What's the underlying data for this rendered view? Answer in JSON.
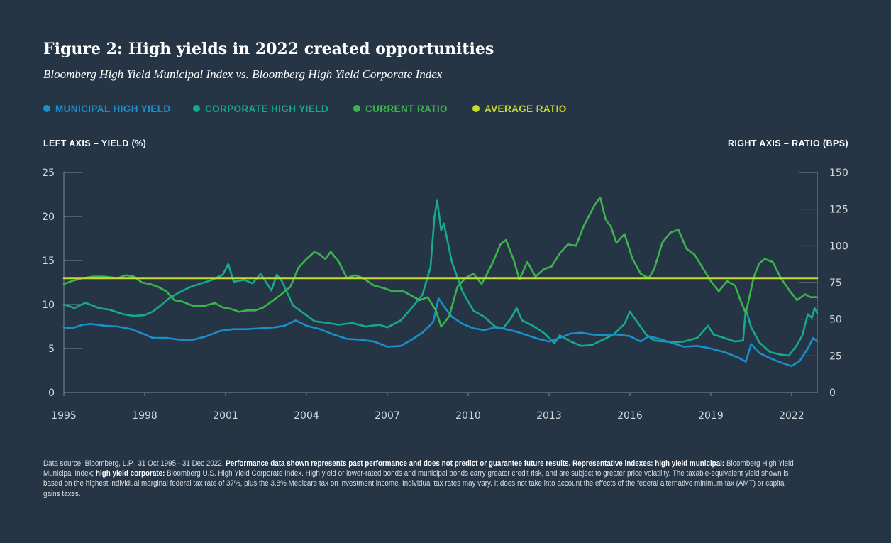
{
  "title": "Figure 2: High yields in 2022 created opportunities",
  "subtitle": "Bloomberg High Yield Municipal Index vs. Bloomberg High Yield Corporate Index",
  "legend": [
    {
      "label": "MUNICIPAL HIGH YIELD",
      "color": "#1a8fc9"
    },
    {
      "label": "CORPORATE HIGH YIELD",
      "color": "#17a98c"
    },
    {
      "label": "CURRENT RATIO",
      "color": "#3ab54a"
    },
    {
      "label": "AVERAGE RATIO",
      "color": "#c9da2a"
    }
  ],
  "left_axis_label": "LEFT AXIS – YIELD (%)",
  "right_axis_label": "RIGHT AXIS – RATIO (BPS)",
  "footnote": {
    "p1": "Data source: Bloomberg, L.P., 31 Oct 1995 - 31 Dec 2022. ",
    "b1": "Performance data shown represents past performance and does not predict or guarantee future results. Representative indexes: high yield municipal: ",
    "p2": "Bloomberg High Yield Municipal Index; ",
    "b2": "high yield corporate: ",
    "p3": "Bloomberg U.S. High Yield Corporate Index. High yield or lower-rated bonds and municipal bonds carry greater credit risk, and are subject to greater price volatility. The taxable-equivalent yield shown is based on the highest individual marginal federal tax rate of 37%, plus the 3.8% Medicare tax on investment income. Individual tax rates may vary. It does not take into account the effects of the federal alternative minimum tax (AMT) or capital gains taxes."
  },
  "chart_data": {
    "type": "line",
    "x_range": [
      1995.0,
      2022.95
    ],
    "x_ticks": [
      1995,
      1998,
      2001,
      2004,
      2007,
      2010,
      2013,
      2016,
      2019,
      2022
    ],
    "x_tick_labels": [
      "1995",
      "1998",
      "2001",
      "2004",
      "2007",
      "2010",
      "2013",
      "2016",
      "2019",
      "2022"
    ],
    "left_axis": {
      "label": "Yield (%)",
      "range": [
        0,
        25
      ],
      "ticks": [
        0,
        5,
        10,
        15,
        20,
        25
      ],
      "tick_labels": [
        "0",
        "5",
        "10",
        "15",
        "20",
        "25"
      ]
    },
    "right_axis": {
      "label": "Ratio (bps)",
      "range": [
        0,
        150
      ],
      "ticks": [
        0,
        25,
        50,
        75,
        100,
        125,
        150
      ],
      "tick_labels": [
        "0",
        "25",
        "50",
        "75",
        "100",
        "125",
        "150"
      ]
    },
    "series": [
      {
        "name": "Municipal High Yield",
        "axis": "left",
        "color": "#1a8fc9",
        "points": [
          [
            1995.0,
            7.4
          ],
          [
            1995.3,
            7.3
          ],
          [
            1995.7,
            7.7
          ],
          [
            1996.0,
            7.8
          ],
          [
            1996.5,
            7.6
          ],
          [
            1997.0,
            7.5
          ],
          [
            1997.5,
            7.2
          ],
          [
            1998.0,
            6.6
          ],
          [
            1998.3,
            6.2
          ],
          [
            1998.8,
            6.2
          ],
          [
            1999.3,
            6.0
          ],
          [
            1999.8,
            6.0
          ],
          [
            2000.3,
            6.4
          ],
          [
            2000.8,
            7.0
          ],
          [
            2001.3,
            7.2
          ],
          [
            2001.8,
            7.2
          ],
          [
            2002.3,
            7.3
          ],
          [
            2002.8,
            7.4
          ],
          [
            2003.2,
            7.6
          ],
          [
            2003.6,
            8.2
          ],
          [
            2004.0,
            7.6
          ],
          [
            2004.5,
            7.2
          ],
          [
            2005.0,
            6.6
          ],
          [
            2005.5,
            6.1
          ],
          [
            2006.0,
            6.0
          ],
          [
            2006.5,
            5.8
          ],
          [
            2007.0,
            5.2
          ],
          [
            2007.5,
            5.3
          ],
          [
            2007.9,
            6.0
          ],
          [
            2008.3,
            6.8
          ],
          [
            2008.7,
            8.0
          ],
          [
            2008.9,
            10.7
          ],
          [
            2009.1,
            9.8
          ],
          [
            2009.4,
            8.6
          ],
          [
            2009.8,
            7.8
          ],
          [
            2010.2,
            7.3
          ],
          [
            2010.6,
            7.1
          ],
          [
            2011.0,
            7.4
          ],
          [
            2011.4,
            7.2
          ],
          [
            2011.8,
            6.9
          ],
          [
            2012.2,
            6.5
          ],
          [
            2012.6,
            6.1
          ],
          [
            2013.0,
            5.8
          ],
          [
            2013.4,
            6.2
          ],
          [
            2013.8,
            6.7
          ],
          [
            2014.2,
            6.8
          ],
          [
            2014.6,
            6.6
          ],
          [
            2015.0,
            6.5
          ],
          [
            2015.5,
            6.6
          ],
          [
            2016.0,
            6.4
          ],
          [
            2016.4,
            5.8
          ],
          [
            2016.7,
            6.4
          ],
          [
            2017.1,
            6.1
          ],
          [
            2017.5,
            5.7
          ],
          [
            2018.0,
            5.2
          ],
          [
            2018.5,
            5.3
          ],
          [
            2019.0,
            5.0
          ],
          [
            2019.5,
            4.6
          ],
          [
            2020.0,
            4.0
          ],
          [
            2020.3,
            3.5
          ],
          [
            2020.5,
            5.5
          ],
          [
            2020.8,
            4.5
          ],
          [
            2021.2,
            3.9
          ],
          [
            2021.6,
            3.4
          ],
          [
            2022.0,
            3.0
          ],
          [
            2022.3,
            3.6
          ],
          [
            2022.6,
            5.0
          ],
          [
            2022.8,
            6.2
          ],
          [
            2022.95,
            5.8
          ]
        ]
      },
      {
        "name": "Corporate High Yield",
        "axis": "left",
        "color": "#17a98c",
        "points": [
          [
            1995.0,
            10.0
          ],
          [
            1995.4,
            9.6
          ],
          [
            1995.8,
            10.2
          ],
          [
            1996.3,
            9.6
          ],
          [
            1996.7,
            9.4
          ],
          [
            1997.2,
            8.9
          ],
          [
            1997.6,
            8.7
          ],
          [
            1998.0,
            8.8
          ],
          [
            1998.3,
            9.2
          ],
          [
            1998.6,
            9.9
          ],
          [
            1998.9,
            10.7
          ],
          [
            1999.3,
            11.4
          ],
          [
            1999.7,
            12.0
          ],
          [
            2000.1,
            12.4
          ],
          [
            2000.5,
            12.8
          ],
          [
            2000.9,
            13.4
          ],
          [
            2001.1,
            14.6
          ],
          [
            2001.3,
            12.6
          ],
          [
            2001.7,
            12.8
          ],
          [
            2002.0,
            12.4
          ],
          [
            2002.3,
            13.5
          ],
          [
            2002.7,
            11.6
          ],
          [
            2002.9,
            13.4
          ],
          [
            2003.1,
            12.6
          ],
          [
            2003.5,
            9.9
          ],
          [
            2003.9,
            9.0
          ],
          [
            2004.3,
            8.1
          ],
          [
            2004.8,
            7.9
          ],
          [
            2005.2,
            7.7
          ],
          [
            2005.7,
            7.9
          ],
          [
            2006.2,
            7.5
          ],
          [
            2006.7,
            7.7
          ],
          [
            2007.0,
            7.4
          ],
          [
            2007.5,
            8.2
          ],
          [
            2007.9,
            9.6
          ],
          [
            2008.3,
            11.1
          ],
          [
            2008.6,
            14.2
          ],
          [
            2008.75,
            20.0
          ],
          [
            2008.85,
            21.8
          ],
          [
            2009.0,
            18.4
          ],
          [
            2009.1,
            19.2
          ],
          [
            2009.4,
            14.8
          ],
          [
            2009.8,
            11.4
          ],
          [
            2010.2,
            9.3
          ],
          [
            2010.6,
            8.6
          ],
          [
            2011.0,
            7.5
          ],
          [
            2011.3,
            7.3
          ],
          [
            2011.6,
            8.5
          ],
          [
            2011.8,
            9.6
          ],
          [
            2012.0,
            8.2
          ],
          [
            2012.4,
            7.6
          ],
          [
            2012.8,
            6.8
          ],
          [
            2013.2,
            5.6
          ],
          [
            2013.4,
            6.5
          ],
          [
            2013.8,
            5.8
          ],
          [
            2014.2,
            5.3
          ],
          [
            2014.6,
            5.4
          ],
          [
            2015.0,
            6.0
          ],
          [
            2015.4,
            6.6
          ],
          [
            2015.8,
            7.8
          ],
          [
            2016.0,
            9.2
          ],
          [
            2016.3,
            7.9
          ],
          [
            2016.6,
            6.6
          ],
          [
            2016.9,
            5.9
          ],
          [
            2017.3,
            5.8
          ],
          [
            2017.7,
            5.7
          ],
          [
            2018.0,
            5.8
          ],
          [
            2018.5,
            6.2
          ],
          [
            2018.9,
            7.6
          ],
          [
            2019.1,
            6.6
          ],
          [
            2019.5,
            6.2
          ],
          [
            2019.9,
            5.8
          ],
          [
            2020.2,
            5.9
          ],
          [
            2020.3,
            9.5
          ],
          [
            2020.5,
            7.4
          ],
          [
            2020.8,
            5.7
          ],
          [
            2021.2,
            4.6
          ],
          [
            2021.6,
            4.3
          ],
          [
            2021.9,
            4.2
          ],
          [
            2022.2,
            5.4
          ],
          [
            2022.4,
            6.5
          ],
          [
            2022.6,
            8.9
          ],
          [
            2022.75,
            8.5
          ],
          [
            2022.85,
            9.6
          ],
          [
            2022.95,
            9.0
          ]
        ]
      },
      {
        "name": "Current Ratio",
        "axis": "right",
        "color": "#3ab54a",
        "points": [
          [
            1995.0,
            74
          ],
          [
            1995.3,
            76
          ],
          [
            1995.7,
            78
          ],
          [
            1996.1,
            79
          ],
          [
            1996.5,
            79
          ],
          [
            1997.0,
            78
          ],
          [
            1997.3,
            80
          ],
          [
            1997.6,
            79
          ],
          [
            1997.9,
            75
          ],
          [
            1998.2,
            74
          ],
          [
            1998.5,
            72
          ],
          [
            1998.8,
            69
          ],
          [
            1999.1,
            63
          ],
          [
            1999.4,
            62
          ],
          [
            1999.8,
            59
          ],
          [
            2000.2,
            59
          ],
          [
            2000.6,
            61
          ],
          [
            2000.9,
            58
          ],
          [
            2001.2,
            57
          ],
          [
            2001.5,
            55
          ],
          [
            2001.8,
            56
          ],
          [
            2002.1,
            56
          ],
          [
            2002.4,
            58
          ],
          [
            2002.7,
            62
          ],
          [
            2003.0,
            66
          ],
          [
            2003.4,
            72
          ],
          [
            2003.7,
            85
          ],
          [
            2004.0,
            91
          ],
          [
            2004.3,
            96
          ],
          [
            2004.5,
            94
          ],
          [
            2004.7,
            91
          ],
          [
            2004.9,
            96
          ],
          [
            2005.2,
            89
          ],
          [
            2005.5,
            78
          ],
          [
            2005.8,
            80
          ],
          [
            2006.1,
            78
          ],
          [
            2006.5,
            73
          ],
          [
            2006.9,
            71
          ],
          [
            2007.2,
            69
          ],
          [
            2007.6,
            69
          ],
          [
            2007.9,
            66
          ],
          [
            2008.2,
            63
          ],
          [
            2008.5,
            65
          ],
          [
            2008.8,
            56
          ],
          [
            2009.0,
            45
          ],
          [
            2009.3,
            52
          ],
          [
            2009.6,
            72
          ],
          [
            2009.9,
            78
          ],
          [
            2010.2,
            81
          ],
          [
            2010.5,
            74
          ],
          [
            2010.9,
            88
          ],
          [
            2011.2,
            101
          ],
          [
            2011.4,
            104
          ],
          [
            2011.7,
            90
          ],
          [
            2011.9,
            77
          ],
          [
            2012.2,
            89
          ],
          [
            2012.5,
            79
          ],
          [
            2012.8,
            84
          ],
          [
            2013.1,
            86
          ],
          [
            2013.4,
            95
          ],
          [
            2013.7,
            101
          ],
          [
            2014.0,
            100
          ],
          [
            2014.3,
            114
          ],
          [
            2014.5,
            121
          ],
          [
            2014.7,
            128
          ],
          [
            2014.9,
            133
          ],
          [
            2015.1,
            118
          ],
          [
            2015.3,
            113
          ],
          [
            2015.5,
            102
          ],
          [
            2015.8,
            108
          ],
          [
            2016.1,
            91
          ],
          [
            2016.4,
            81
          ],
          [
            2016.7,
            78
          ],
          [
            2016.9,
            84
          ],
          [
            2017.2,
            102
          ],
          [
            2017.5,
            109
          ],
          [
            2017.8,
            111
          ],
          [
            2018.1,
            98
          ],
          [
            2018.4,
            94
          ],
          [
            2018.7,
            85
          ],
          [
            2019.0,
            76
          ],
          [
            2019.3,
            69
          ],
          [
            2019.6,
            76
          ],
          [
            2019.9,
            73
          ],
          [
            2020.1,
            63
          ],
          [
            2020.3,
            54
          ],
          [
            2020.6,
            79
          ],
          [
            2020.8,
            88
          ],
          [
            2021.0,
            91
          ],
          [
            2021.3,
            89
          ],
          [
            2021.6,
            78
          ],
          [
            2021.9,
            70
          ],
          [
            2022.2,
            63
          ],
          [
            2022.5,
            67
          ],
          [
            2022.7,
            65
          ],
          [
            2022.95,
            65
          ]
        ]
      },
      {
        "name": "Average Ratio",
        "axis": "right",
        "color": "#c9da2a",
        "points": [
          [
            1995.0,
            78
          ],
          [
            2022.95,
            78
          ]
        ]
      }
    ]
  }
}
